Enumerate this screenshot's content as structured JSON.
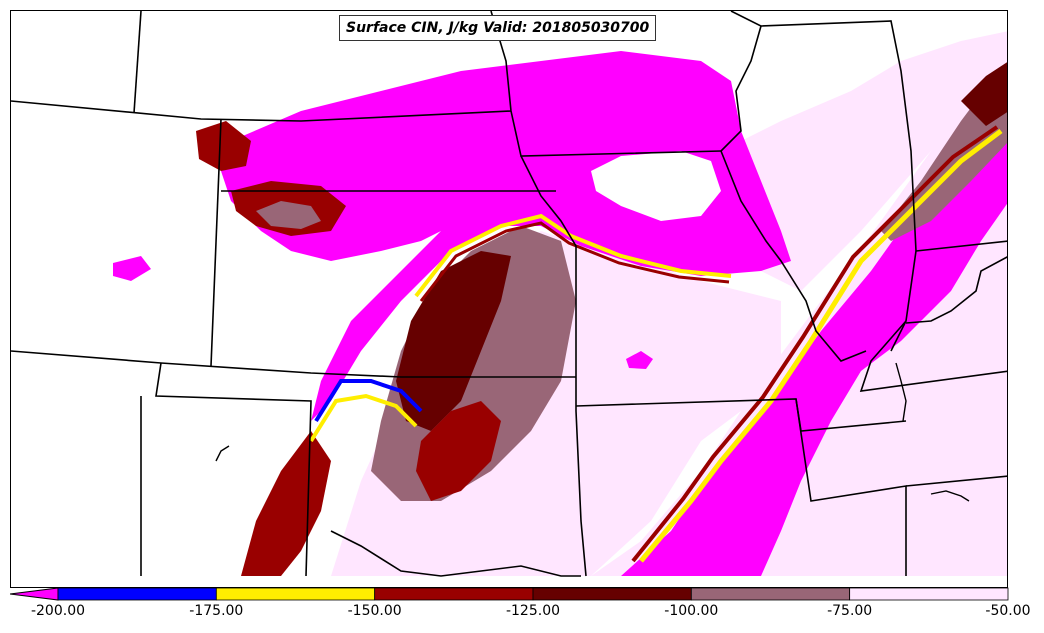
{
  "title": "Surface CIN, J/kg Valid: 201805030700",
  "colorbar": {
    "ticks": [
      "-200.00",
      "-175.00",
      "-150.00",
      "-125.00",
      "-100.00",
      "-75.00",
      "-50.00"
    ],
    "bins": [
      {
        "from": -200,
        "to": -175,
        "color": "#0000ff"
      },
      {
        "from": -175,
        "to": -150,
        "color": "#ffee00"
      },
      {
        "from": -150,
        "to": -125,
        "color": "#990000"
      },
      {
        "from": -125,
        "to": -100,
        "color": "#660000"
      },
      {
        "from": -100,
        "to": -75,
        "color": "#996677"
      },
      {
        "from": -75,
        "to": -50,
        "color": "#ffe6ff"
      }
    ],
    "under_color": "#ff00ff"
  },
  "colors": {
    "magenta": "#ff00ff",
    "blue": "#0000ff",
    "yellow": "#ffee00",
    "dark_red": "#990000",
    "darker_red": "#660000",
    "mauve": "#996677",
    "pale_pink": "#ffe6ff",
    "border": "#000000"
  }
}
